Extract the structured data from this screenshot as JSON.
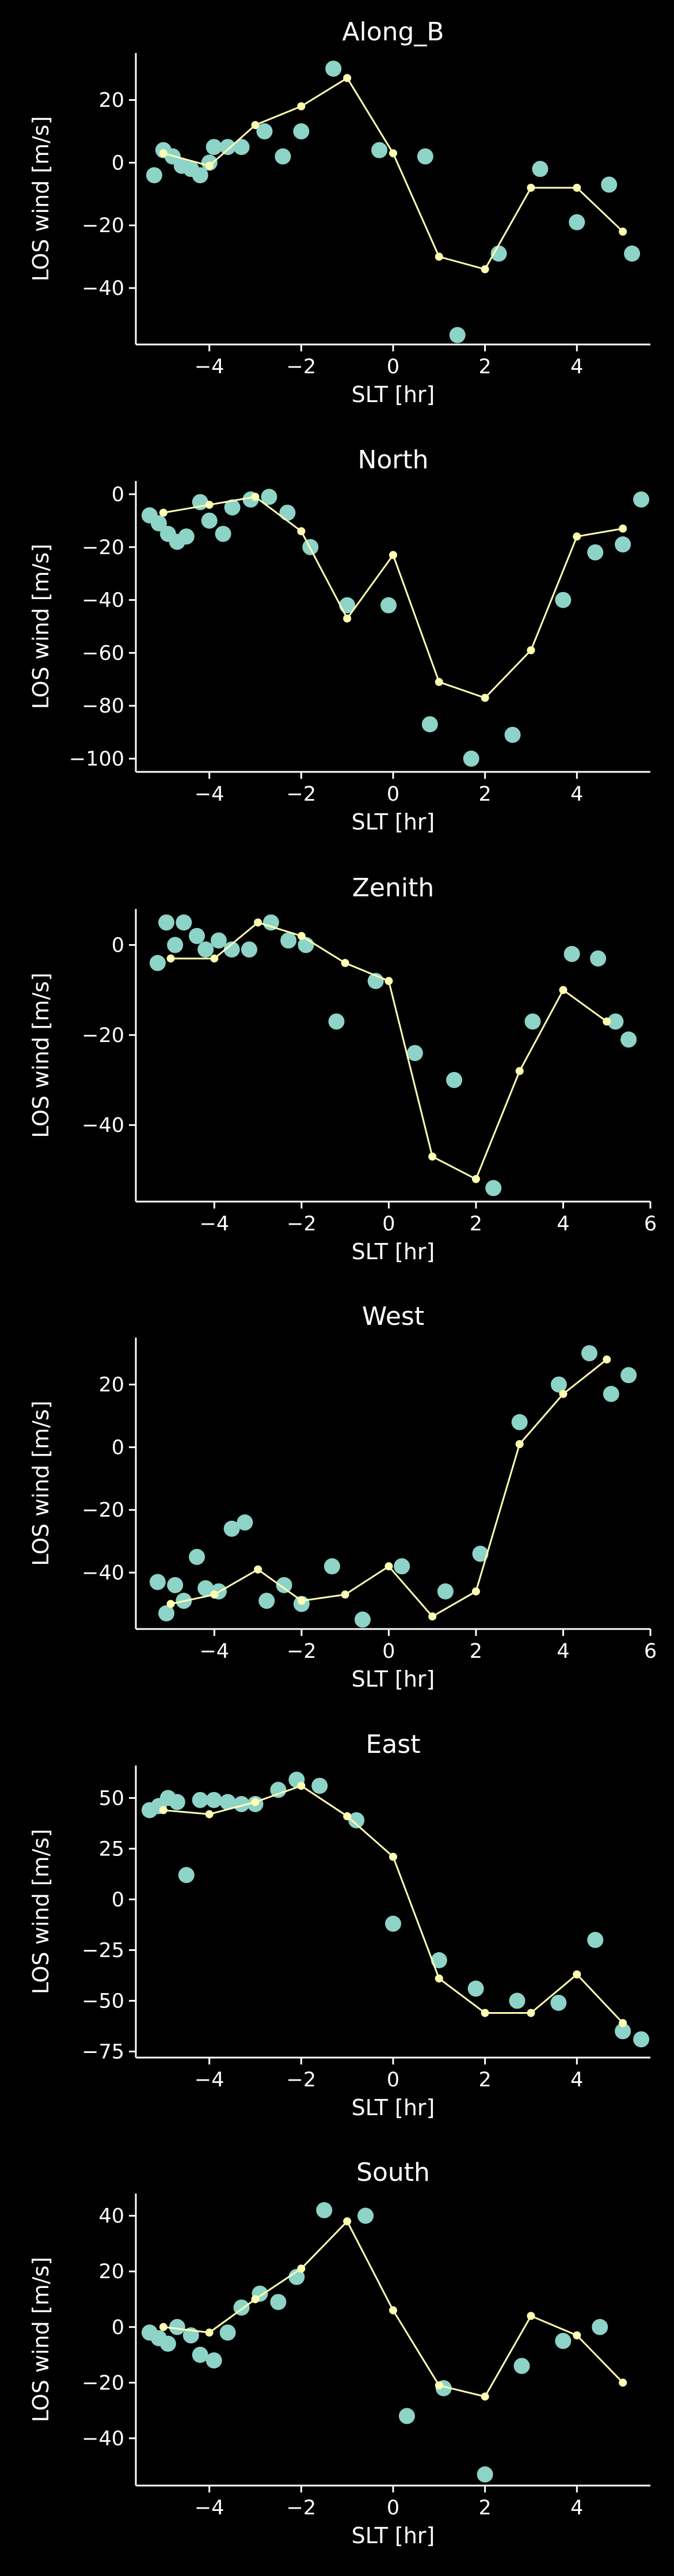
{
  "style": {
    "background": "#000000",
    "foreground": "#ffffff",
    "scatter_color": "#8dd3c7",
    "line_color": "#ffffb3"
  },
  "chart_data": [
    {
      "type": "scatter",
      "title": "Along_B",
      "xlabel": "SLT [hr]",
      "ylabel": "LOS wind [m/s]",
      "xlim": [
        -5.6,
        5.6
      ],
      "ylim": [
        -58,
        35
      ],
      "xticks": [
        -4,
        -2,
        0,
        2,
        4
      ],
      "yticks": [
        -40,
        -20,
        0,
        20
      ],
      "grid": false,
      "series": [
        {
          "kind": "scatter",
          "points": [
            [
              -5.2,
              -4
            ],
            [
              -5.0,
              4
            ],
            [
              -4.8,
              2
            ],
            [
              -4.6,
              -1
            ],
            [
              -4.4,
              -2
            ],
            [
              -4.2,
              -4
            ],
            [
              -4.0,
              0
            ],
            [
              -3.9,
              5
            ],
            [
              -3.6,
              5
            ],
            [
              -3.3,
              5
            ],
            [
              -2.8,
              10
            ],
            [
              -2.4,
              2
            ],
            [
              -2.0,
              10
            ],
            [
              -1.3,
              30
            ],
            [
              -0.3,
              4
            ],
            [
              0.7,
              2
            ],
            [
              1.4,
              -55
            ],
            [
              2.3,
              -29
            ],
            [
              3.2,
              -2
            ],
            [
              4.0,
              -19
            ],
            [
              4.7,
              -7
            ],
            [
              5.2,
              -29
            ]
          ]
        },
        {
          "kind": "line",
          "points": [
            [
              -5.0,
              3
            ],
            [
              -4.0,
              -1
            ],
            [
              -3.0,
              12
            ],
            [
              -2.0,
              18
            ],
            [
              -1.0,
              27
            ],
            [
              0.0,
              3
            ],
            [
              1.0,
              -30
            ],
            [
              2.0,
              -34
            ],
            [
              3.0,
              -8
            ],
            [
              4.0,
              -8
            ],
            [
              5.0,
              -22
            ]
          ]
        }
      ]
    },
    {
      "type": "scatter",
      "title": "North",
      "xlabel": "SLT [hr]",
      "ylabel": "LOS wind [m/s]",
      "xlim": [
        -5.6,
        5.6
      ],
      "ylim": [
        -105,
        5
      ],
      "xticks": [
        -4,
        -2,
        0,
        2,
        4
      ],
      "yticks": [
        -100,
        -80,
        -60,
        -40,
        -20,
        0
      ],
      "grid": false,
      "series": [
        {
          "kind": "scatter",
          "points": [
            [
              -5.3,
              -8
            ],
            [
              -5.1,
              -11
            ],
            [
              -4.9,
              -15
            ],
            [
              -4.7,
              -18
            ],
            [
              -4.5,
              -16
            ],
            [
              -4.2,
              -3
            ],
            [
              -4.0,
              -10
            ],
            [
              -3.7,
              -15
            ],
            [
              -3.5,
              -5
            ],
            [
              -3.1,
              -2
            ],
            [
              -2.7,
              -1
            ],
            [
              -2.3,
              -7
            ],
            [
              -1.8,
              -20
            ],
            [
              -1.0,
              -42
            ],
            [
              -0.1,
              -42
            ],
            [
              0.8,
              -87
            ],
            [
              1.7,
              -100
            ],
            [
              2.6,
              -91
            ],
            [
              3.7,
              -40
            ],
            [
              4.4,
              -22
            ],
            [
              5.0,
              -19
            ],
            [
              5.4,
              -2
            ]
          ]
        },
        {
          "kind": "line",
          "points": [
            [
              -5.0,
              -7
            ],
            [
              -4.0,
              -4
            ],
            [
              -3.0,
              -1
            ],
            [
              -2.0,
              -14
            ],
            [
              -1.0,
              -47
            ],
            [
              0.0,
              -23
            ],
            [
              1.0,
              -71
            ],
            [
              2.0,
              -77
            ],
            [
              3.0,
              -59
            ],
            [
              4.0,
              -16
            ],
            [
              5.0,
              -13
            ]
          ]
        }
      ]
    },
    {
      "type": "scatter",
      "title": "Zenith",
      "xlabel": "SLT [hr]",
      "ylabel": "LOS wind [m/s]",
      "xlim": [
        -5.8,
        6.0
      ],
      "ylim": [
        -57,
        8
      ],
      "xticks": [
        -4,
        -2,
        0,
        2,
        4,
        6
      ],
      "yticks": [
        -40,
        -20,
        0
      ],
      "grid": false,
      "series": [
        {
          "kind": "scatter",
          "points": [
            [
              -5.3,
              -4
            ],
            [
              -5.1,
              5
            ],
            [
              -4.9,
              0
            ],
            [
              -4.7,
              5
            ],
            [
              -4.4,
              2
            ],
            [
              -4.2,
              -1
            ],
            [
              -3.9,
              1
            ],
            [
              -3.6,
              -1
            ],
            [
              -3.2,
              -1
            ],
            [
              -2.7,
              5
            ],
            [
              -2.3,
              1
            ],
            [
              -1.9,
              0
            ],
            [
              -1.2,
              -17
            ],
            [
              -0.3,
              -8
            ],
            [
              0.6,
              -24
            ],
            [
              1.5,
              -30
            ],
            [
              2.4,
              -54
            ],
            [
              3.3,
              -17
            ],
            [
              4.2,
              -2
            ],
            [
              4.8,
              -3
            ],
            [
              5.2,
              -17
            ],
            [
              5.5,
              -21
            ]
          ]
        },
        {
          "kind": "line",
          "points": [
            [
              -5.0,
              -3
            ],
            [
              -4.0,
              -3
            ],
            [
              -3.0,
              5
            ],
            [
              -2.0,
              2
            ],
            [
              -1.0,
              -4
            ],
            [
              0.0,
              -8
            ],
            [
              1.0,
              -47
            ],
            [
              2.0,
              -52
            ],
            [
              3.0,
              -28
            ],
            [
              4.0,
              -10
            ],
            [
              5.0,
              -17
            ]
          ]
        }
      ]
    },
    {
      "type": "scatter",
      "title": "West",
      "xlabel": "SLT [hr]",
      "ylabel": "LOS wind [m/s]",
      "xlim": [
        -5.8,
        6.0
      ],
      "ylim": [
        -58,
        35
      ],
      "xticks": [
        -4,
        -2,
        0,
        2,
        4,
        6
      ],
      "yticks": [
        -40,
        -20,
        0,
        20
      ],
      "grid": false,
      "series": [
        {
          "kind": "scatter",
          "points": [
            [
              -5.3,
              -43
            ],
            [
              -5.1,
              -53
            ],
            [
              -4.9,
              -44
            ],
            [
              -4.7,
              -49
            ],
            [
              -4.4,
              -35
            ],
            [
              -4.2,
              -45
            ],
            [
              -3.9,
              -46
            ],
            [
              -3.6,
              -26
            ],
            [
              -3.3,
              -24
            ],
            [
              -2.8,
              -49
            ],
            [
              -2.4,
              -44
            ],
            [
              -2.0,
              -50
            ],
            [
              -1.3,
              -38
            ],
            [
              -0.6,
              -55
            ],
            [
              0.3,
              -38
            ],
            [
              1.3,
              -46
            ],
            [
              2.1,
              -34
            ],
            [
              3.0,
              8
            ],
            [
              3.9,
              20
            ],
            [
              4.6,
              30
            ],
            [
              5.1,
              17
            ],
            [
              5.5,
              23
            ]
          ]
        },
        {
          "kind": "line",
          "points": [
            [
              -5.0,
              -50
            ],
            [
              -4.0,
              -47
            ],
            [
              -3.0,
              -39
            ],
            [
              -2.0,
              -49
            ],
            [
              -1.0,
              -47
            ],
            [
              0.0,
              -38
            ],
            [
              1.0,
              -54
            ],
            [
              2.0,
              -46
            ],
            [
              3.0,
              1
            ],
            [
              4.0,
              17
            ],
            [
              5.0,
              28
            ]
          ]
        }
      ]
    },
    {
      "type": "scatter",
      "title": "East",
      "xlabel": "SLT [hr]",
      "ylabel": "LOS wind [m/s]",
      "xlim": [
        -5.6,
        5.6
      ],
      "ylim": [
        -78,
        66
      ],
      "xticks": [
        -4,
        -2,
        0,
        2,
        4
      ],
      "yticks": [
        -75,
        -50,
        -25,
        0,
        25,
        50
      ],
      "grid": false,
      "series": [
        {
          "kind": "scatter",
          "points": [
            [
              -5.3,
              44
            ],
            [
              -5.1,
              46
            ],
            [
              -4.9,
              50
            ],
            [
              -4.7,
              48
            ],
            [
              -4.5,
              12
            ],
            [
              -4.2,
              49
            ],
            [
              -3.9,
              49
            ],
            [
              -3.6,
              48
            ],
            [
              -3.3,
              47
            ],
            [
              -3.0,
              47
            ],
            [
              -2.5,
              54
            ],
            [
              -2.1,
              59
            ],
            [
              -1.6,
              56
            ],
            [
              -0.8,
              39
            ],
            [
              0.0,
              -12
            ],
            [
              1.0,
              -30
            ],
            [
              1.8,
              -44
            ],
            [
              2.7,
              -50
            ],
            [
              3.6,
              -51
            ],
            [
              4.4,
              -20
            ],
            [
              5.0,
              -65
            ],
            [
              5.4,
              -69
            ]
          ]
        },
        {
          "kind": "line",
          "points": [
            [
              -5.0,
              44
            ],
            [
              -4.0,
              42
            ],
            [
              -3.0,
              48
            ],
            [
              -2.0,
              56
            ],
            [
              -1.0,
              41
            ],
            [
              0.0,
              21
            ],
            [
              1.0,
              -39
            ],
            [
              2.0,
              -56
            ],
            [
              3.0,
              -56
            ],
            [
              4.0,
              -37
            ],
            [
              5.0,
              -61
            ]
          ]
        }
      ]
    },
    {
      "type": "scatter",
      "title": "South",
      "xlabel": "SLT [hr]",
      "ylabel": "LOS wind [m/s]",
      "xlim": [
        -5.6,
        5.6
      ],
      "ylim": [
        -57,
        48
      ],
      "xticks": [
        -4,
        -2,
        0,
        2,
        4
      ],
      "yticks": [
        -40,
        -20,
        0,
        20,
        40
      ],
      "grid": false,
      "series": [
        {
          "kind": "scatter",
          "points": [
            [
              -5.3,
              -2
            ],
            [
              -5.1,
              -4
            ],
            [
              -4.9,
              -6
            ],
            [
              -4.7,
              0
            ],
            [
              -4.4,
              -3
            ],
            [
              -4.2,
              -10
            ],
            [
              -3.9,
              -12
            ],
            [
              -3.6,
              -2
            ],
            [
              -3.3,
              7
            ],
            [
              -2.9,
              12
            ],
            [
              -2.5,
              9
            ],
            [
              -2.1,
              18
            ],
            [
              -1.5,
              42
            ],
            [
              -0.6,
              40
            ],
            [
              0.3,
              -32
            ],
            [
              1.1,
              -22
            ],
            [
              2.0,
              -53
            ],
            [
              2.8,
              -14
            ],
            [
              3.7,
              -5
            ],
            [
              4.5,
              0
            ]
          ]
        },
        {
          "kind": "line",
          "points": [
            [
              -5.0,
              0
            ],
            [
              -4.0,
              -2
            ],
            [
              -3.0,
              10
            ],
            [
              -2.0,
              21
            ],
            [
              -1.0,
              38
            ],
            [
              0.0,
              6
            ],
            [
              1.0,
              -21
            ],
            [
              2.0,
              -25
            ],
            [
              3.0,
              4
            ],
            [
              4.0,
              -3
            ],
            [
              5.0,
              -20
            ]
          ]
        }
      ]
    }
  ]
}
